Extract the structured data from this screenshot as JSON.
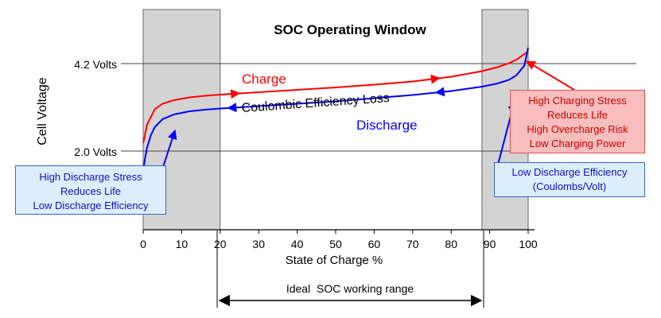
{
  "chart_data": {
    "type": "line",
    "title": "SOC Operating Window",
    "xlabel": "State of Charge %",
    "ylabel": "Cell Voltage",
    "xlim": [
      0,
      100
    ],
    "x_ticks": [
      "0",
      "10",
      "20",
      "30",
      "40",
      "50",
      "60",
      "70",
      "80",
      "90",
      "100"
    ],
    "y_ticks": [
      {
        "label": "4.2 Volts",
        "value": 4.2
      },
      {
        "label": "2.0 Volts",
        "value": 2.0
      }
    ],
    "shaded_regions": [
      [
        0,
        20
      ],
      [
        88,
        100
      ]
    ],
    "series": [
      {
        "name": "Charge",
        "color": "#ff0000",
        "x": [
          0,
          0.5,
          1,
          3,
          5,
          8,
          12,
          16,
          20,
          30,
          40,
          50,
          60,
          70,
          80,
          88,
          92,
          95,
          97,
          99,
          100
        ],
        "y": [
          2.2,
          2.42,
          2.66,
          3.05,
          3.19,
          3.28,
          3.35,
          3.39,
          3.42,
          3.48,
          3.54,
          3.6,
          3.67,
          3.75,
          3.87,
          4.01,
          4.11,
          4.21,
          4.3,
          4.44,
          4.5
        ]
      },
      {
        "name": "Discharge",
        "color": "#0000ff",
        "x": [
          0,
          0.5,
          1,
          2,
          3,
          5,
          8,
          12,
          16,
          20,
          30,
          40,
          50,
          60,
          70,
          80,
          88,
          92,
          95,
          97,
          99,
          100
        ],
        "y": [
          1.5,
          1.82,
          2.08,
          2.4,
          2.6,
          2.8,
          2.92,
          3.0,
          3.04,
          3.07,
          3.13,
          3.19,
          3.25,
          3.33,
          3.41,
          3.51,
          3.62,
          3.7,
          3.79,
          3.91,
          4.15,
          4.6
        ]
      }
    ],
    "annotations": {
      "charge_label": "Charge",
      "discharge_label": "Discharge",
      "coulombic_loss": "Coulombic Efficiency Loss",
      "ideal_range": "Ideal  SOC working range",
      "ideal_range_span": [
        20,
        88
      ]
    },
    "callouts": {
      "discharge_stress": [
        "High Discharge Stress",
        "Reduces Life",
        "Low Discharge Efficiency"
      ],
      "charge_stress": [
        "High Charging Stress",
        "Reduces Life",
        "High Overcharge Risk",
        "Low Charging Power"
      ],
      "discharge_efficiency": [
        "Low Discharge Efficiency",
        "(Coulombs/Volt)"
      ]
    },
    "grid": false
  }
}
